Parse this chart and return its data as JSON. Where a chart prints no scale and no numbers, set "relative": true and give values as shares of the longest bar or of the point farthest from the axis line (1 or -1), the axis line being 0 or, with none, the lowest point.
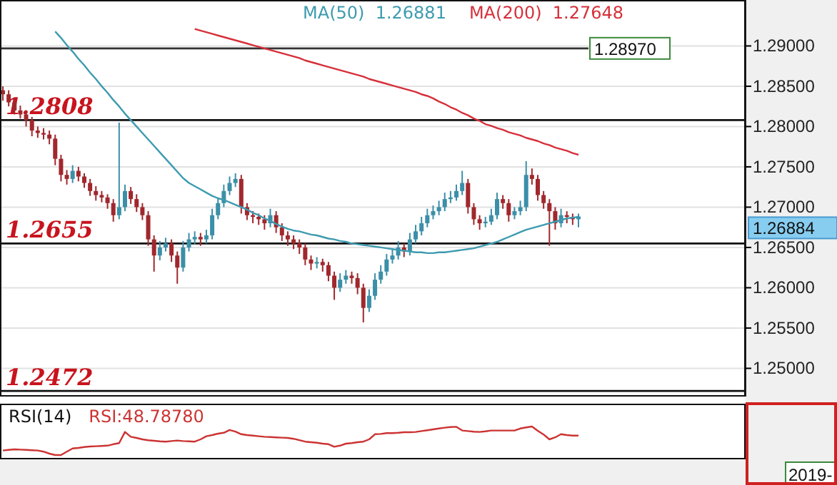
{
  "chart_data": [
    {
      "type": "candlestick",
      "categories": [
        null,
        null,
        null,
        null,
        null,
        null,
        null,
        null,
        null,
        null,
        null,
        null,
        null,
        null,
        null,
        null,
        null,
        null,
        null,
        null,
        null,
        null,
        null,
        null,
        null,
        null,
        null,
        null,
        null,
        null,
        null,
        null,
        null,
        null,
        null,
        null,
        null,
        null,
        null,
        null,
        null,
        null,
        null,
        null,
        null,
        null,
        null,
        null,
        null,
        null,
        null,
        null,
        null,
        null,
        null,
        null,
        null,
        null,
        null,
        null,
        null,
        null,
        null,
        null,
        null,
        null,
        null,
        null,
        null,
        null,
        null,
        null,
        null,
        null,
        null,
        null,
        null,
        null,
        null,
        null,
        null,
        null,
        null,
        null,
        null,
        null,
        null,
        null,
        null,
        null,
        null,
        null,
        null,
        null,
        null,
        null,
        null,
        null,
        null,
        null
      ],
      "ohlc": [
        [
          1.2845,
          1.285,
          1.2832,
          1.284
        ],
        [
          1.284,
          1.2845,
          1.2825,
          1.283
        ],
        [
          1.283,
          1.2835,
          1.2815,
          1.282
        ],
        [
          1.282,
          1.2826,
          1.281,
          1.2815
        ],
        [
          1.2815,
          1.282,
          1.28,
          1.2808
        ],
        [
          1.2808,
          1.2812,
          1.2788,
          1.2795
        ],
        [
          1.2795,
          1.28,
          1.2786,
          1.2792
        ],
        [
          1.2792,
          1.2798,
          1.2784,
          1.279
        ],
        [
          1.279,
          1.2795,
          1.2778,
          1.2785
        ],
        [
          1.2785,
          1.279,
          1.2752,
          1.276
        ],
        [
          1.276,
          1.2765,
          1.2732,
          1.274
        ],
        [
          1.274,
          1.2746,
          1.2728,
          1.2735
        ],
        [
          1.2735,
          1.2752,
          1.273,
          1.2745
        ],
        [
          1.2745,
          1.275,
          1.2732,
          1.2738
        ],
        [
          1.2738,
          1.2742,
          1.2724,
          1.273
        ],
        [
          1.273,
          1.2735,
          1.2714,
          1.272
        ],
        [
          1.272,
          1.2726,
          1.2708,
          1.2715
        ],
        [
          1.2715,
          1.272,
          1.2706,
          1.2712
        ],
        [
          1.2712,
          1.2716,
          1.2698,
          1.2705
        ],
        [
          1.2705,
          1.271,
          1.2682,
          1.269
        ],
        [
          1.269,
          1.2805,
          1.2685,
          1.27
        ],
        [
          1.27,
          1.2728,
          1.2695,
          1.272
        ],
        [
          1.272,
          1.2725,
          1.2704,
          1.271
        ],
        [
          1.271,
          1.2716,
          1.2694,
          1.27
        ],
        [
          1.27,
          1.2705,
          1.2684,
          1.269
        ],
        [
          1.269,
          1.2695,
          1.2652,
          1.266
        ],
        [
          1.266,
          1.2665,
          1.262,
          1.264
        ],
        [
          1.264,
          1.2658,
          1.2634,
          1.265
        ],
        [
          1.265,
          1.2662,
          1.2645,
          1.2655
        ],
        [
          1.2655,
          1.266,
          1.2632,
          1.264
        ],
        [
          1.264,
          1.2645,
          1.2605,
          1.2625
        ],
        [
          1.2625,
          1.2658,
          1.262,
          1.265
        ],
        [
          1.265,
          1.2668,
          1.2645,
          1.266
        ],
        [
          1.266,
          1.267,
          1.2654,
          1.2663
        ],
        [
          1.2663,
          1.2668,
          1.2652,
          1.266
        ],
        [
          1.266,
          1.2672,
          1.2655,
          1.2665
        ],
        [
          1.2665,
          1.2698,
          1.266,
          1.269
        ],
        [
          1.269,
          1.2712,
          1.2685,
          1.2705
        ],
        [
          1.2705,
          1.2728,
          1.27,
          1.272
        ],
        [
          1.272,
          1.2738,
          1.2715,
          1.273
        ],
        [
          1.273,
          1.2742,
          1.2725,
          1.2735
        ],
        [
          1.2735,
          1.274,
          1.2692,
          1.27
        ],
        [
          1.27,
          1.2705,
          1.2684,
          1.269
        ],
        [
          1.269,
          1.2695,
          1.268,
          1.2688
        ],
        [
          1.2688,
          1.2692,
          1.2678,
          1.2685
        ],
        [
          1.2685,
          1.269,
          1.2672,
          1.268
        ],
        [
          1.268,
          1.2698,
          1.2675,
          1.269
        ],
        [
          1.269,
          1.2695,
          1.2668,
          1.2675
        ],
        [
          1.2675,
          1.268,
          1.2658,
          1.2665
        ],
        [
          1.2665,
          1.267,
          1.2652,
          1.266
        ],
        [
          1.266,
          1.2665,
          1.2648,
          1.2655
        ],
        [
          1.2655,
          1.266,
          1.2642,
          1.265
        ],
        [
          1.265,
          1.2655,
          1.2628,
          1.2635
        ],
        [
          1.2635,
          1.264,
          1.2622,
          1.263
        ],
        [
          1.263,
          1.2638,
          1.2624,
          1.2632
        ],
        [
          1.2632,
          1.2636,
          1.262,
          1.2628
        ],
        [
          1.2628,
          1.2632,
          1.2608,
          1.2615
        ],
        [
          1.2615,
          1.262,
          1.2585,
          1.26
        ],
        [
          1.26,
          1.2618,
          1.2595,
          1.261
        ],
        [
          1.261,
          1.2622,
          1.2605,
          1.2615
        ],
        [
          1.2615,
          1.262,
          1.2605,
          1.2612
        ],
        [
          1.2612,
          1.2618,
          1.2592,
          1.26
        ],
        [
          1.26,
          1.2605,
          1.2557,
          1.2575
        ],
        [
          1.2575,
          1.2598,
          1.257,
          1.259
        ],
        [
          1.259,
          1.2618,
          1.2585,
          1.261
        ],
        [
          1.261,
          1.2628,
          1.2605,
          1.262
        ],
        [
          1.262,
          1.2642,
          1.2615,
          1.2635
        ],
        [
          1.2635,
          1.2648,
          1.263,
          1.264
        ],
        [
          1.264,
          1.2658,
          1.2635,
          1.265
        ],
        [
          1.265,
          1.2655,
          1.2638,
          1.2645
        ],
        [
          1.2645,
          1.2668,
          1.264,
          1.266
        ],
        [
          1.266,
          1.2678,
          1.2655,
          1.267
        ],
        [
          1.267,
          1.2688,
          1.2665,
          1.268
        ],
        [
          1.268,
          1.2698,
          1.2675,
          1.269
        ],
        [
          1.269,
          1.2702,
          1.2685,
          1.2695
        ],
        [
          1.2695,
          1.2708,
          1.269,
          1.27
        ],
        [
          1.27,
          1.2718,
          1.2695,
          1.271
        ],
        [
          1.271,
          1.272,
          1.2705,
          1.2712
        ],
        [
          1.2712,
          1.2728,
          1.2708,
          1.272
        ],
        [
          1.272,
          1.2745,
          1.2715,
          1.273
        ],
        [
          1.273,
          1.2735,
          1.2692,
          1.27
        ],
        [
          1.27,
          1.2705,
          1.2678,
          1.2685
        ],
        [
          1.2685,
          1.269,
          1.2672,
          1.268
        ],
        [
          1.268,
          1.2688,
          1.2675,
          1.2682
        ],
        [
          1.2682,
          1.2698,
          1.2678,
          1.269
        ],
        [
          1.269,
          1.2718,
          1.2685,
          1.271
        ],
        [
          1.271,
          1.2715,
          1.2698,
          1.2705
        ],
        [
          1.2705,
          1.271,
          1.2682,
          1.269
        ],
        [
          1.269,
          1.27,
          1.2685,
          1.2695
        ],
        [
          1.2695,
          1.2708,
          1.269,
          1.27
        ],
        [
          1.27,
          1.2757,
          1.2695,
          1.274
        ],
        [
          1.274,
          1.2748,
          1.2728,
          1.2735
        ],
        [
          1.2735,
          1.274,
          1.2708,
          1.2715
        ],
        [
          1.2715,
          1.272,
          1.2698,
          1.2705
        ],
        [
          1.2705,
          1.271,
          1.2652,
          1.2695
        ],
        [
          1.2695,
          1.27,
          1.2672,
          1.268
        ],
        [
          1.268,
          1.2698,
          1.2675,
          1.269
        ],
        [
          1.269,
          1.2695,
          1.268,
          1.2688
        ],
        [
          1.2688,
          1.2692,
          1.2678,
          1.2685
        ],
        [
          1.2685,
          1.2692,
          1.2675,
          1.26884
        ]
      ],
      "series": [
        {
          "type": "line",
          "name": "MA(50)  1.26881",
          "color": "#3d9bb0",
          "values": [
            null,
            null,
            null,
            null,
            null,
            null,
            null,
            null,
            null,
            1.2918,
            1.291,
            1.2901,
            1.2893,
            1.2884,
            1.2876,
            1.2867,
            1.2859,
            1.285,
            1.2842,
            1.2833,
            1.2825,
            1.2816,
            1.2808,
            1.28,
            1.2792,
            1.2784,
            1.2776,
            1.2768,
            1.276,
            1.2752,
            1.2744,
            1.2736,
            1.273,
            1.2726,
            1.2722,
            1.2718,
            1.2714,
            1.2711,
            1.2709,
            1.2706,
            1.2703,
            1.27,
            1.2697,
            1.2693,
            1.269,
            1.2686,
            1.2683,
            1.2679,
            1.2676,
            1.2673,
            1.2671,
            1.267,
            1.2668,
            1.2666,
            1.2665,
            1.2663,
            1.2661,
            1.266,
            1.2658,
            1.2657,
            1.2655,
            1.2654,
            1.2653,
            1.2652,
            1.2651,
            1.265,
            1.2649,
            1.2648,
            1.2647,
            1.2646,
            1.2645,
            1.2644,
            1.2644,
            1.2643,
            1.2643,
            1.2644,
            1.2644,
            1.2645,
            1.2646,
            1.2647,
            1.2648,
            1.2649,
            1.2651,
            1.2653,
            1.2655,
            1.2657,
            1.266,
            1.2663,
            1.2666,
            1.2669,
            1.2672,
            1.2674,
            1.2676,
            1.2678,
            1.268,
            1.2682,
            1.2684,
            1.2686,
            1.2687,
            1.2688
          ]
        },
        {
          "type": "line",
          "name": "MA(200)  1.27648",
          "color": "#d6303a",
          "values": [
            null,
            null,
            null,
            null,
            null,
            null,
            null,
            null,
            null,
            null,
            null,
            null,
            null,
            null,
            null,
            null,
            null,
            null,
            null,
            null,
            null,
            null,
            null,
            null,
            null,
            null,
            null,
            null,
            null,
            null,
            null,
            null,
            null,
            1.2921,
            1.2919,
            1.2917,
            1.2915,
            1.2913,
            1.2911,
            1.2909,
            1.2907,
            1.2905,
            1.2903,
            1.2901,
            1.2899,
            1.2897,
            1.2895,
            1.2893,
            1.2891,
            1.2889,
            1.2887,
            1.2885,
            1.2882,
            1.288,
            1.2878,
            1.2876,
            1.2874,
            1.2872,
            1.287,
            1.2868,
            1.2866,
            1.2864,
            1.2862,
            1.2859,
            1.2857,
            1.2855,
            1.2853,
            1.2851,
            1.2849,
            1.2847,
            1.2845,
            1.2843,
            1.284,
            1.2838,
            1.2835,
            1.2831,
            1.2828,
            1.2824,
            1.2821,
            1.2817,
            1.2814,
            1.281,
            1.2807,
            1.2803,
            1.2801,
            1.2798,
            1.2796,
            1.2793,
            1.2791,
            1.2789,
            1.2786,
            1.2784,
            1.2782,
            1.2779,
            1.2777,
            1.2774,
            1.2772,
            1.277,
            1.2767,
            1.2765
          ]
        }
      ],
      "ylim": [
        1.2465,
        1.2957
      ],
      "yticks": [
        {
          "value": 1.25,
          "label": "1.25000"
        },
        {
          "value": 1.255,
          "label": "1.25500"
        },
        {
          "value": 1.26,
          "label": "1.26000"
        },
        {
          "value": 1.265,
          "label": "1.26500"
        },
        {
          "value": 1.27,
          "label": "1.27000"
        },
        {
          "value": 1.275,
          "label": "1.27500"
        },
        {
          "value": 1.28,
          "label": "1.28000"
        },
        {
          "value": 1.285,
          "label": "1.28500"
        },
        {
          "value": 1.29,
          "label": "1.29000"
        }
      ],
      "ref_lines": [
        {
          "axis": "y",
          "value": 1.2897,
          "label": "1.28970",
          "color": "#333333"
        },
        {
          "axis": "y",
          "value": 1.2808,
          "label": "1.2808",
          "color": "#111111"
        },
        {
          "axis": "y",
          "value": 1.2655,
          "label": "1.2655",
          "color": "#111111"
        },
        {
          "axis": "y",
          "value": 1.2472,
          "label": "1.2472",
          "color": "#111111"
        }
      ],
      "annotations": [
        "1.26884"
      ],
      "grid": "y",
      "legend": "top",
      "tick_labels": "y"
    },
    {
      "type": "line",
      "relative": true,
      "title": "RSI(14)",
      "categories": [
        null,
        null,
        null,
        null,
        null,
        null,
        null,
        null,
        null,
        null,
        null,
        null,
        null,
        null,
        null,
        null,
        null,
        null,
        null,
        null,
        null,
        null,
        null,
        null,
        null,
        null,
        null,
        null,
        null,
        null,
        null,
        null,
        null,
        null,
        null,
        null,
        null,
        null,
        null,
        null,
        null,
        null,
        null,
        null,
        null,
        null,
        null,
        null,
        null,
        null,
        null,
        null,
        null,
        null,
        null,
        null,
        null,
        null,
        null,
        null,
        null,
        null,
        null,
        null,
        null,
        null,
        null,
        null,
        null,
        null,
        null,
        null,
        null,
        null,
        null,
        null,
        null,
        null,
        null,
        null,
        null,
        null,
        null,
        null,
        null,
        null,
        null,
        null,
        null,
        null,
        null,
        null,
        null,
        null,
        null,
        null,
        null,
        null,
        null,
        null
      ],
      "series": [
        {
          "name": "RSI:48.78780",
          "color": "#cc3333",
          "values": [
            0.16,
            0.18,
            0.2,
            0.19,
            0.18,
            0.17,
            0.16,
            0.12,
            0.05,
            0,
            0,
            0.12,
            0.23,
            0.25,
            0.28,
            0.3,
            0.31,
            0.32,
            0.33,
            0.38,
            0.42,
            0.81,
            0.64,
            0.6,
            0.55,
            0.52,
            0.5,
            0.48,
            0.47,
            0.49,
            0.51,
            0.49,
            0.48,
            0.47,
            0.55,
            0.66,
            0.7,
            0.75,
            0.78,
            0.88,
            0.82,
            0.73,
            0.7,
            0.68,
            0.66,
            0.64,
            0.63,
            0.62,
            0.61,
            0.6,
            0.57,
            0.52,
            0.47,
            0.45,
            0.43,
            0.4,
            0.38,
            0.29,
            0.33,
            0.4,
            0.42,
            0.45,
            0.47,
            0.55,
            0.73,
            0.74,
            0.77,
            0.77,
            0.78,
            0.8,
            0.8,
            0.81,
            0.84,
            0.87,
            0.9,
            0.93,
            0.96,
            0.98,
            0.99,
            0.86,
            0.84,
            0.82,
            0.81,
            0.83,
            0.86,
            0.86,
            0.86,
            0.86,
            0.86,
            0.93,
            0.97,
            1,
            0.85,
            0.72,
            0.55,
            0.62,
            0.73,
            0.7,
            0.68,
            0.68
          ]
        }
      ],
      "annotations": [
        "2019-"
      ],
      "legend": "top",
      "tick_labels": false
    }
  ]
}
